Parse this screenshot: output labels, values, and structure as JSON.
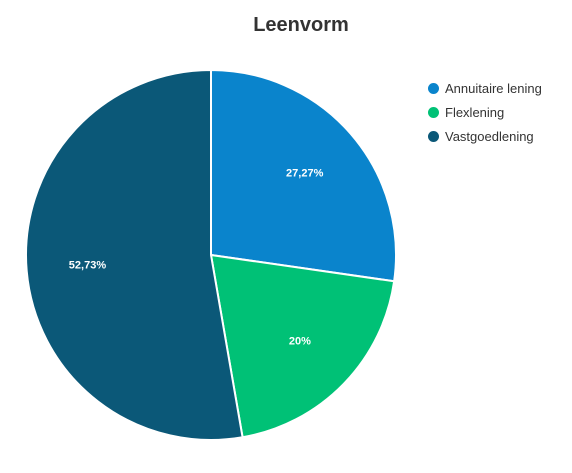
{
  "chart_data": {
    "type": "pie",
    "title": "Leenvorm",
    "categories": [
      "Annuitaire lening",
      "Flexlening",
      "Vastgoedlening"
    ],
    "values": [
      27.27,
      20,
      52.73
    ],
    "labels": [
      "27,27%",
      "20%",
      "52,73%"
    ],
    "colors": [
      "#0a84cc",
      "#00c176",
      "#0b5878"
    ],
    "legend_position": "top-right",
    "start_angle_deg": 0,
    "direction": "clockwise"
  }
}
